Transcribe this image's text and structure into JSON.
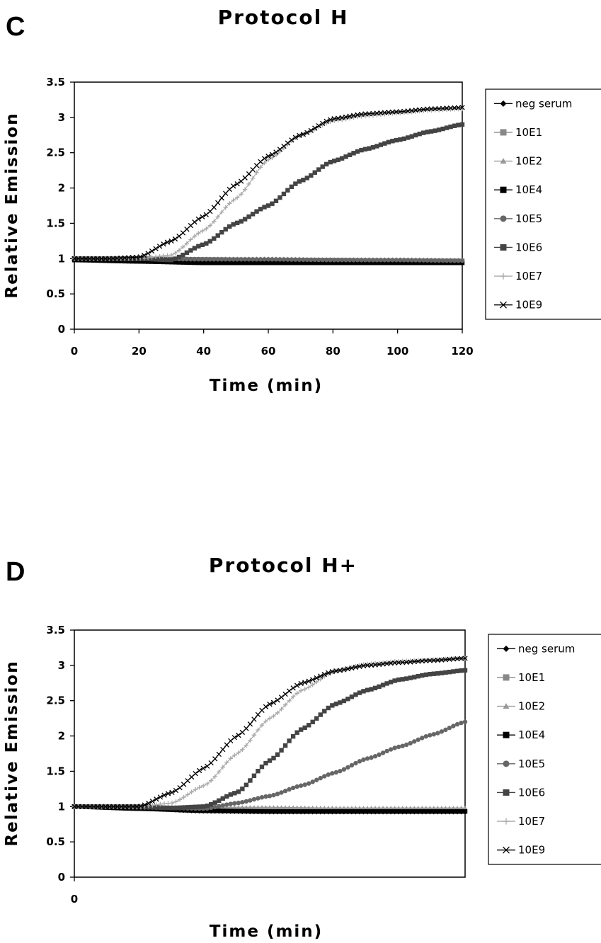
{
  "panels": [
    {
      "letter": "C",
      "title": "Protocol H",
      "ylabel": "Relative Emission",
      "xlabel": "Time (min)",
      "x_ticks": [
        "0",
        "20",
        "40",
        "60",
        "80",
        "100",
        "120"
      ],
      "y_ticks": [
        "0",
        "0.5",
        "1",
        "1.5",
        "2",
        "2.5",
        "3",
        "3.5"
      ]
    },
    {
      "letter": "D",
      "title": "Protocol H+",
      "ylabel": "Relative Emission",
      "xlabel": "Time (min)",
      "x_ticks": [
        "0"
      ],
      "y_ticks": [
        "0",
        "0.5",
        "1",
        "1.5",
        "2",
        "2.5",
        "3",
        "3.5"
      ]
    }
  ],
  "chart_data": [
    {
      "type": "line",
      "title": "Protocol H",
      "xlabel": "Time (min)",
      "ylabel": "Relative Emission",
      "xlim": [
        0,
        120
      ],
      "ylim": [
        0,
        3.5
      ],
      "grid": false,
      "legend_position": "right",
      "series": [
        {
          "name": "neg serum",
          "color": "#000000",
          "marker": "diamond",
          "x": [
            0,
            20,
            40,
            60,
            80,
            100,
            120
          ],
          "y": [
            1.0,
            0.97,
            0.95,
            0.95,
            0.95,
            0.95,
            0.95
          ]
        },
        {
          "name": "10E1",
          "color": "#888888",
          "marker": "square",
          "x": [
            0,
            20,
            40,
            60,
            80,
            100,
            120
          ],
          "y": [
            1.0,
            1.0,
            0.99,
            0.98,
            0.98,
            0.97,
            0.97
          ]
        },
        {
          "name": "10E2",
          "color": "#999999",
          "marker": "triangle",
          "x": [
            0,
            20,
            40,
            60,
            80,
            100,
            120
          ],
          "y": [
            1.0,
            1.0,
            1.0,
            1.0,
            0.99,
            0.99,
            0.98
          ]
        },
        {
          "name": "10E4",
          "color": "#000000",
          "marker": "square",
          "x": [
            0,
            20,
            40,
            60,
            80,
            100,
            120
          ],
          "y": [
            0.98,
            0.96,
            0.94,
            0.94,
            0.94,
            0.94,
            0.94
          ]
        },
        {
          "name": "10E5",
          "color": "#666666",
          "marker": "circle",
          "x": [
            0,
            20,
            40,
            60,
            80,
            100,
            120
          ],
          "y": [
            1.0,
            1.0,
            0.99,
            0.99,
            0.98,
            0.98,
            0.97
          ]
        },
        {
          "name": "10E6",
          "color": "#444444",
          "marker": "square",
          "x": [
            0,
            10,
            20,
            30,
            40,
            50,
            60,
            70,
            80,
            90,
            100,
            110,
            120
          ],
          "y": [
            1.0,
            1.0,
            1.0,
            0.98,
            1.2,
            1.5,
            1.75,
            2.1,
            2.38,
            2.55,
            2.68,
            2.8,
            2.9
          ]
        },
        {
          "name": "10E7",
          "color": "#aaaaaa",
          "marker": "plus",
          "x": [
            0,
            10,
            20,
            30,
            40,
            50,
            60,
            70,
            80,
            90,
            100,
            110,
            120
          ],
          "y": [
            1.0,
            1.0,
            1.0,
            1.05,
            1.4,
            1.85,
            2.4,
            2.75,
            2.95,
            3.02,
            3.06,
            3.1,
            3.12
          ]
        },
        {
          "name": "10E9",
          "color": "#000000",
          "marker": "x",
          "x": [
            0,
            10,
            20,
            30,
            40,
            50,
            60,
            70,
            80,
            90,
            100,
            110,
            120
          ],
          "y": [
            1.0,
            1.0,
            1.02,
            1.25,
            1.6,
            2.05,
            2.45,
            2.75,
            2.98,
            3.05,
            3.08,
            3.12,
            3.14
          ]
        }
      ]
    },
    {
      "type": "line",
      "title": "Protocol H+",
      "xlabel": "Time (min)",
      "ylabel": "Relative Emission",
      "xlim": [
        0,
        120
      ],
      "ylim": [
        0,
        3.5
      ],
      "grid": false,
      "legend_position": "right",
      "series": [
        {
          "name": "neg serum",
          "color": "#000000",
          "marker": "diamond",
          "x": [
            0,
            20,
            40,
            60,
            80,
            100,
            120
          ],
          "y": [
            1.0,
            0.97,
            0.93,
            0.92,
            0.92,
            0.92,
            0.92
          ]
        },
        {
          "name": "10E1",
          "color": "#888888",
          "marker": "square",
          "x": [
            0,
            20,
            40,
            60,
            80,
            100,
            120
          ],
          "y": [
            1.0,
            0.98,
            0.95,
            0.95,
            0.94,
            0.94,
            0.94
          ]
        },
        {
          "name": "10E2",
          "color": "#999999",
          "marker": "triangle",
          "x": [
            0,
            20,
            40,
            60,
            80,
            100,
            120
          ],
          "y": [
            1.0,
            1.0,
            0.99,
            0.99,
            0.98,
            0.98,
            0.98
          ]
        },
        {
          "name": "10E4",
          "color": "#000000",
          "marker": "square",
          "x": [
            0,
            20,
            40,
            60,
            80,
            100,
            120
          ],
          "y": [
            1.0,
            0.97,
            0.94,
            0.93,
            0.93,
            0.93,
            0.93
          ]
        },
        {
          "name": "10E5",
          "color": "#666666",
          "marker": "circle",
          "x": [
            0,
            10,
            20,
            30,
            40,
            50,
            60,
            70,
            80,
            90,
            100,
            110,
            120
          ],
          "y": [
            1.0,
            1.0,
            0.99,
            0.98,
            0.97,
            1.05,
            1.15,
            1.3,
            1.48,
            1.68,
            1.85,
            2.02,
            2.2
          ]
        },
        {
          "name": "10E6",
          "color": "#444444",
          "marker": "square",
          "x": [
            0,
            10,
            20,
            30,
            40,
            50,
            60,
            70,
            80,
            90,
            100,
            110,
            120
          ],
          "y": [
            1.0,
            1.0,
            1.0,
            0.98,
            1.0,
            1.2,
            1.65,
            2.1,
            2.45,
            2.65,
            2.8,
            2.88,
            2.93
          ]
        },
        {
          "name": "10E7",
          "color": "#aaaaaa",
          "marker": "plus",
          "x": [
            0,
            10,
            20,
            30,
            40,
            50,
            60,
            70,
            80,
            90,
            100,
            110,
            120
          ],
          "y": [
            1.0,
            1.0,
            1.0,
            1.05,
            1.3,
            1.75,
            2.25,
            2.65,
            2.92,
            3.02,
            3.06,
            3.08,
            3.1
          ]
        },
        {
          "name": "10E9",
          "color": "#000000",
          "marker": "x",
          "x": [
            0,
            10,
            20,
            30,
            40,
            50,
            60,
            70,
            80,
            90,
            100,
            110,
            120
          ],
          "y": [
            1.0,
            1.0,
            1.0,
            1.2,
            1.55,
            2.0,
            2.45,
            2.75,
            2.92,
            3.0,
            3.04,
            3.07,
            3.1
          ]
        }
      ]
    }
  ]
}
